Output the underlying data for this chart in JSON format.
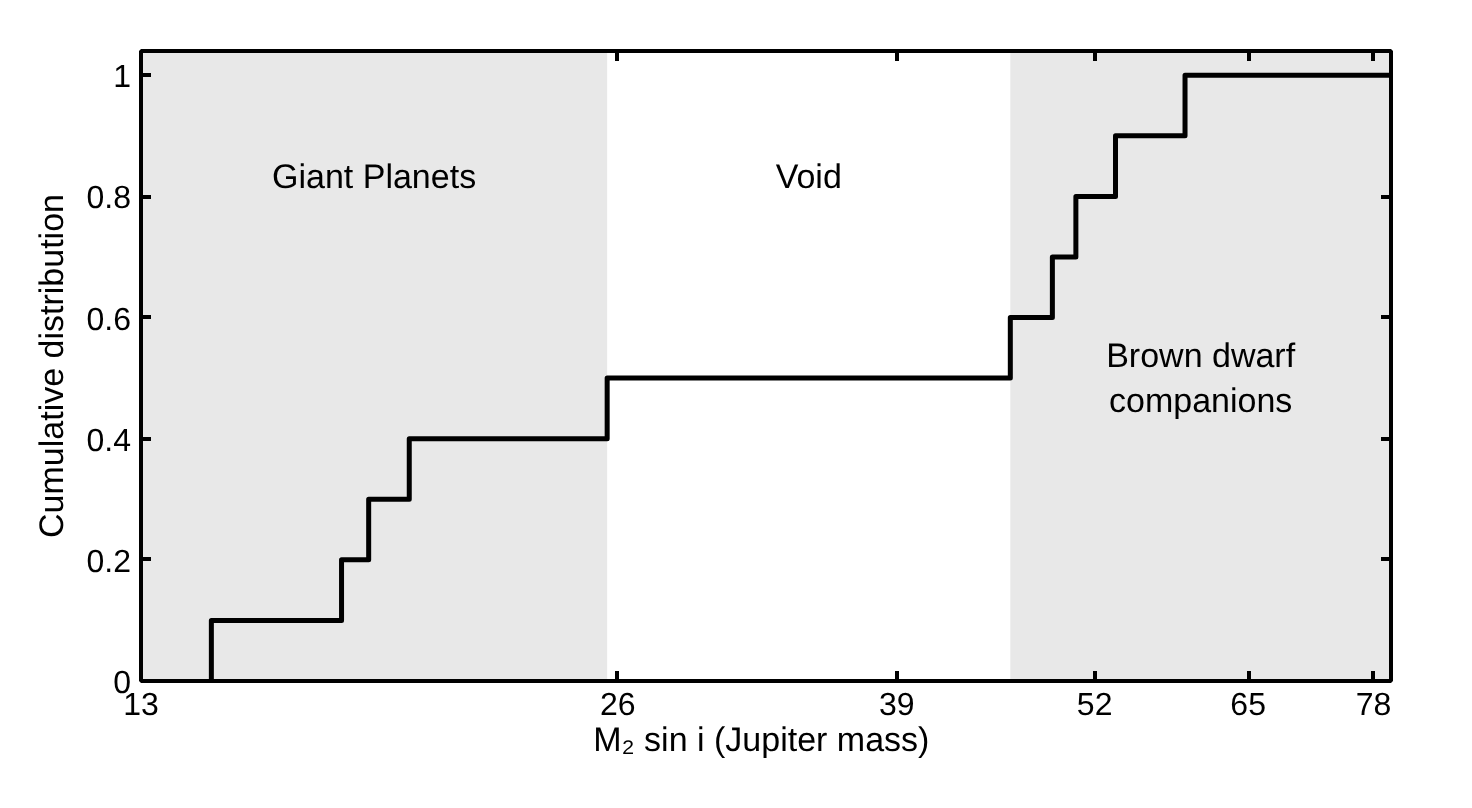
{
  "chart_data": {
    "type": "step",
    "xlabel": "M₂ sin i  (Jupiter mass)",
    "ylabel": "Cumulative distribution",
    "log": "x",
    "xlim": [
      13,
      80
    ],
    "xticks": [
      13,
      26,
      39,
      52,
      65,
      78
    ],
    "ylim": [
      0,
      1.04
    ],
    "yticks": [
      0,
      0.2,
      0.4,
      0.6,
      0.8,
      1
    ],
    "series": [
      {
        "color": "#000000",
        "x": [
          14.4,
          14.4,
          17.4,
          18.1,
          19.2,
          25.6,
          46,
          48.9,
          50.6,
          53.6,
          59.3,
          80
        ],
        "values": [
          0,
          0.1,
          0.2,
          0.3,
          0.4,
          0.5,
          0.6,
          0.7,
          0.8,
          0.9,
          1,
          1
        ]
      }
    ],
    "bands": [
      {
        "axis": "x",
        "from": 13,
        "to": 25.6,
        "label": "Giant Planets",
        "color": "#e8e8e8"
      },
      {
        "axis": "x",
        "from": 46,
        "to": 80,
        "label": "Brown dwarf\ncompanions",
        "color": "#e8e8e8"
      }
    ],
    "annotations": [
      "Void"
    ],
    "grid": false,
    "line_style": "solid",
    "marker": "none"
  }
}
